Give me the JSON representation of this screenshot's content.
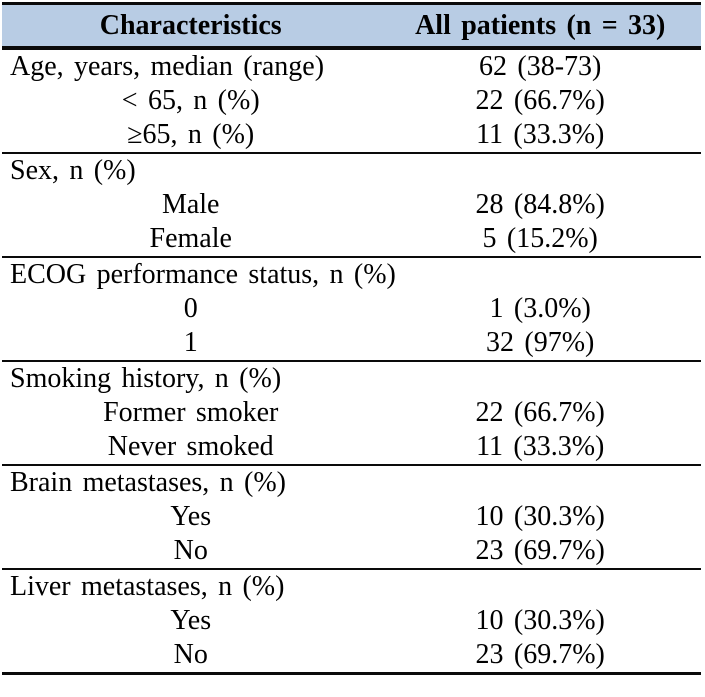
{
  "colors": {
    "header_bg": "#b8cce4",
    "border": "#0a0a0a",
    "text": "#000000"
  },
  "table": {
    "title_row": {
      "characteristics": "Characteristics",
      "all_patients": "All patients (n = 33)"
    },
    "sections": [
      {
        "rows": [
          {
            "label": "Age, years, median (range)",
            "value": "62 (38-73)"
          },
          {
            "label": "< 65, n (%)",
            "value": "22 (66.7%)"
          },
          {
            "label": "≥65, n (%)",
            "value": "11 (33.3%)"
          }
        ]
      },
      {
        "rows": [
          {
            "label": "Sex, n (%)",
            "value": ""
          },
          {
            "label": "Male",
            "value": "28 (84.8%)"
          },
          {
            "label": "Female",
            "value": "5 (15.2%)"
          }
        ]
      },
      {
        "rows": [
          {
            "label": "ECOG performance status, n (%)",
            "value": ""
          },
          {
            "label": "0",
            "value": "1 (3.0%)"
          },
          {
            "label": "1",
            "value": "32 (97%)"
          }
        ]
      },
      {
        "rows": [
          {
            "label": "Smoking history, n (%)",
            "value": ""
          },
          {
            "label": "Former smoker",
            "value": "22 (66.7%)"
          },
          {
            "label": "Never smoked",
            "value": "11 (33.3%)"
          }
        ]
      },
      {
        "rows": [
          {
            "label": "Brain metastases, n (%)",
            "value": ""
          },
          {
            "label": "Yes",
            "value": "10 (30.3%)"
          },
          {
            "label": "No",
            "value": "23 (69.7%)"
          }
        ]
      },
      {
        "rows": [
          {
            "label": "Liver metastases, n (%)",
            "value": ""
          },
          {
            "label": "Yes",
            "value": "10 (30.3%)"
          },
          {
            "label": "No",
            "value": "23 (69.7%)"
          }
        ]
      }
    ]
  },
  "chart_data": {
    "type": "table",
    "columns": [
      "Characteristics",
      "All patients (n = 33)"
    ],
    "rows": [
      [
        "Age, years, median (range)",
        "62 (38-73)"
      ],
      [
        "< 65, n (%)",
        "22 (66.7%)"
      ],
      [
        "≥65, n (%)",
        "11 (33.3%)"
      ],
      [
        "Sex, n (%)",
        ""
      ],
      [
        "Male",
        "28 (84.8%)"
      ],
      [
        "Female",
        "5 (15.2%)"
      ],
      [
        "ECOG performance status, n (%)",
        ""
      ],
      [
        "0",
        "1 (3.0%)"
      ],
      [
        "1",
        "32 (97%)"
      ],
      [
        "Smoking history, n (%)",
        ""
      ],
      [
        "Former smoker",
        "22 (66.7%)"
      ],
      [
        "Never smoked",
        "11 (33.3%)"
      ],
      [
        "Brain metastases, n (%)",
        ""
      ],
      [
        "Yes",
        "10 (30.3%)"
      ],
      [
        "No",
        "23 (69.7%)"
      ],
      [
        "Liver metastases, n (%)",
        ""
      ],
      [
        "Yes",
        "10 (30.3%)"
      ],
      [
        "No",
        "23 (69.7%)"
      ]
    ]
  }
}
